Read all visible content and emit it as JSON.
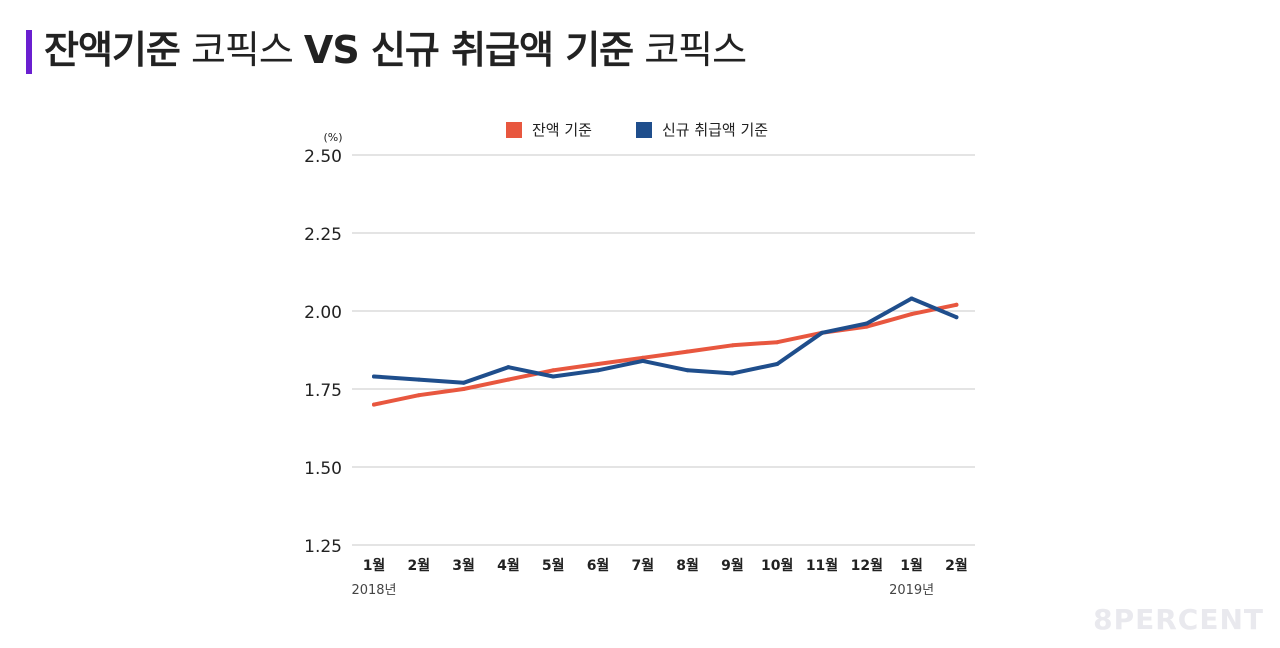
{
  "title": {
    "bold1": "잔액기준",
    "normal1": "코픽스",
    "bold2": "VS 신규 취급액 기준",
    "normal2": "코픽스"
  },
  "watermark": "8PERCENT",
  "chart_data": {
    "type": "line",
    "title": "잔액기준 코픽스 VS 신규 취급액 기준 코픽스",
    "ylabel": "(%)",
    "xlabel": "",
    "ylim": [
      1.25,
      2.5
    ],
    "yticks": [
      "2.50",
      "2.25",
      "2.00",
      "1.75",
      "1.50",
      "1.25"
    ],
    "ytick_values": [
      2.5,
      2.25,
      2.0,
      1.75,
      1.5,
      1.25
    ],
    "grid": true,
    "legend": "top-center",
    "categories": [
      "1월",
      "2월",
      "3월",
      "4월",
      "5월",
      "6월",
      "7월",
      "8월",
      "9월",
      "10월",
      "11월",
      "12월",
      "1월",
      "2월"
    ],
    "year_labels": [
      {
        "index": 0,
        "label": "2018년"
      },
      {
        "index": 12,
        "label": "2019년"
      }
    ],
    "series": [
      {
        "name": "잔액 기준",
        "color": "#e8573f",
        "values": [
          1.7,
          1.73,
          1.75,
          1.78,
          1.81,
          1.83,
          1.85,
          1.87,
          1.89,
          1.9,
          1.93,
          1.95,
          1.99,
          2.02
        ]
      },
      {
        "name": "신규 취급액 기준",
        "color": "#1f4e8c",
        "values": [
          1.79,
          1.78,
          1.77,
          1.82,
          1.79,
          1.81,
          1.84,
          1.81,
          1.8,
          1.83,
          1.93,
          1.96,
          2.04,
          1.98
        ]
      }
    ]
  }
}
